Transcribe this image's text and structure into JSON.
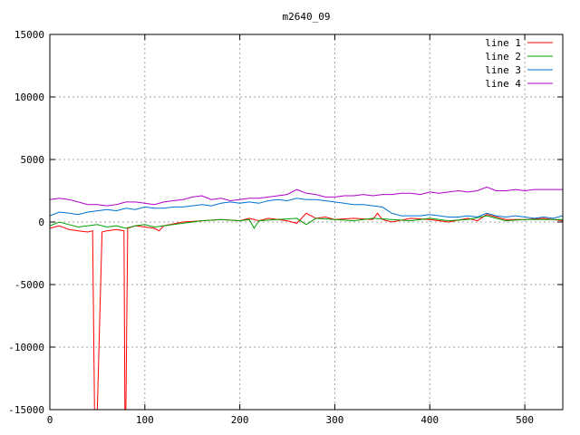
{
  "chart_data": {
    "type": "line",
    "title": "m2640_09",
    "xlabel": "",
    "ylabel": "",
    "xlim": [
      0,
      540
    ],
    "ylim": [
      -15000,
      15000
    ],
    "x_ticks": [
      0,
      100,
      200,
      300,
      400,
      500
    ],
    "y_ticks": [
      -15000,
      -10000,
      -5000,
      0,
      5000,
      10000,
      15000
    ],
    "grid": true,
    "legend_position": "top-right",
    "series": [
      {
        "name": "line 1",
        "color": "#ff0000",
        "points": [
          [
            0,
            -500
          ],
          [
            10,
            -300
          ],
          [
            20,
            -600
          ],
          [
            30,
            -700
          ],
          [
            40,
            -800
          ],
          [
            45,
            -700
          ],
          [
            47,
            -15000
          ],
          [
            50,
            -15000
          ],
          [
            55,
            -800
          ],
          [
            60,
            -700
          ],
          [
            70,
            -600
          ],
          [
            78,
            -700
          ],
          [
            79,
            -15000
          ],
          [
            80,
            -15000
          ],
          [
            82,
            -500
          ],
          [
            90,
            -300
          ],
          [
            100,
            -400
          ],
          [
            110,
            -500
          ],
          [
            115,
            -700
          ],
          [
            120,
            -300
          ],
          [
            140,
            0
          ],
          [
            160,
            100
          ],
          [
            180,
            200
          ],
          [
            200,
            100
          ],
          [
            210,
            300
          ],
          [
            220,
            100
          ],
          [
            230,
            300
          ],
          [
            240,
            200
          ],
          [
            250,
            100
          ],
          [
            260,
            -100
          ],
          [
            270,
            700
          ],
          [
            280,
            300
          ],
          [
            290,
            400
          ],
          [
            300,
            200
          ],
          [
            320,
            300
          ],
          [
            340,
            200
          ],
          [
            345,
            700
          ],
          [
            350,
            200
          ],
          [
            360,
            0
          ],
          [
            380,
            300
          ],
          [
            400,
            200
          ],
          [
            420,
            0
          ],
          [
            440,
            300
          ],
          [
            450,
            100
          ],
          [
            460,
            600
          ],
          [
            480,
            200
          ],
          [
            500,
            200
          ],
          [
            520,
            300
          ],
          [
            540,
            100
          ]
        ]
      },
      {
        "name": "line 2",
        "color": "#00a000",
        "points": [
          [
            0,
            -300
          ],
          [
            10,
            0
          ],
          [
            20,
            -200
          ],
          [
            30,
            -400
          ],
          [
            40,
            -300
          ],
          [
            50,
            -200
          ],
          [
            60,
            -400
          ],
          [
            70,
            -300
          ],
          [
            80,
            -500
          ],
          [
            90,
            -300
          ],
          [
            100,
            -200
          ],
          [
            110,
            -400
          ],
          [
            120,
            -300
          ],
          [
            140,
            -100
          ],
          [
            160,
            100
          ],
          [
            180,
            200
          ],
          [
            200,
            100
          ],
          [
            210,
            200
          ],
          [
            215,
            -500
          ],
          [
            220,
            100
          ],
          [
            240,
            200
          ],
          [
            260,
            300
          ],
          [
            270,
            -200
          ],
          [
            280,
            300
          ],
          [
            300,
            200
          ],
          [
            320,
            100
          ],
          [
            340,
            300
          ],
          [
            360,
            200
          ],
          [
            380,
            100
          ],
          [
            400,
            300
          ],
          [
            420,
            100
          ],
          [
            440,
            200
          ],
          [
            460,
            500
          ],
          [
            480,
            100
          ],
          [
            500,
            200
          ],
          [
            520,
            200
          ],
          [
            540,
            200
          ]
        ]
      },
      {
        "name": "line 3",
        "color": "#0070d0",
        "points": [
          [
            0,
            500
          ],
          [
            10,
            800
          ],
          [
            20,
            700
          ],
          [
            30,
            600
          ],
          [
            40,
            800
          ],
          [
            50,
            900
          ],
          [
            60,
            1000
          ],
          [
            70,
            900
          ],
          [
            80,
            1100
          ],
          [
            90,
            1000
          ],
          [
            100,
            1200
          ],
          [
            110,
            1100
          ],
          [
            120,
            1100
          ],
          [
            130,
            1200
          ],
          [
            140,
            1200
          ],
          [
            150,
            1300
          ],
          [
            160,
            1400
          ],
          [
            170,
            1300
          ],
          [
            180,
            1500
          ],
          [
            190,
            1600
          ],
          [
            200,
            1500
          ],
          [
            210,
            1600
          ],
          [
            220,
            1500
          ],
          [
            230,
            1700
          ],
          [
            240,
            1800
          ],
          [
            250,
            1700
          ],
          [
            260,
            1900
          ],
          [
            270,
            1800
          ],
          [
            280,
            1800
          ],
          [
            290,
            1700
          ],
          [
            300,
            1600
          ],
          [
            310,
            1500
          ],
          [
            320,
            1400
          ],
          [
            330,
            1400
          ],
          [
            340,
            1300
          ],
          [
            350,
            1200
          ],
          [
            360,
            700
          ],
          [
            370,
            500
          ],
          [
            380,
            500
          ],
          [
            390,
            500
          ],
          [
            400,
            600
          ],
          [
            410,
            500
          ],
          [
            420,
            400
          ],
          [
            430,
            400
          ],
          [
            440,
            500
          ],
          [
            450,
            400
          ],
          [
            460,
            700
          ],
          [
            470,
            500
          ],
          [
            480,
            400
          ],
          [
            490,
            500
          ],
          [
            500,
            400
          ],
          [
            510,
            300
          ],
          [
            520,
            400
          ],
          [
            530,
            300
          ],
          [
            540,
            500
          ]
        ]
      },
      {
        "name": "line 4",
        "color": "#b000c8",
        "points": [
          [
            0,
            1800
          ],
          [
            10,
            1900
          ],
          [
            20,
            1800
          ],
          [
            30,
            1600
          ],
          [
            40,
            1400
          ],
          [
            50,
            1400
          ],
          [
            60,
            1300
          ],
          [
            70,
            1400
          ],
          [
            80,
            1600
          ],
          [
            90,
            1600
          ],
          [
            100,
            1500
          ],
          [
            110,
            1400
          ],
          [
            120,
            1600
          ],
          [
            130,
            1700
          ],
          [
            140,
            1800
          ],
          [
            150,
            2000
          ],
          [
            160,
            2100
          ],
          [
            170,
            1800
          ],
          [
            180,
            1900
          ],
          [
            190,
            1700
          ],
          [
            200,
            1800
          ],
          [
            210,
            1900
          ],
          [
            220,
            1900
          ],
          [
            230,
            2000
          ],
          [
            240,
            2100
          ],
          [
            250,
            2200
          ],
          [
            260,
            2600
          ],
          [
            270,
            2300
          ],
          [
            280,
            2200
          ],
          [
            290,
            2000
          ],
          [
            300,
            2000
          ],
          [
            310,
            2100
          ],
          [
            320,
            2100
          ],
          [
            330,
            2200
          ],
          [
            340,
            2100
          ],
          [
            350,
            2200
          ],
          [
            360,
            2200
          ],
          [
            370,
            2300
          ],
          [
            380,
            2300
          ],
          [
            390,
            2200
          ],
          [
            400,
            2400
          ],
          [
            410,
            2300
          ],
          [
            420,
            2400
          ],
          [
            430,
            2500
          ],
          [
            440,
            2400
          ],
          [
            450,
            2500
          ],
          [
            460,
            2800
          ],
          [
            470,
            2500
          ],
          [
            480,
            2500
          ],
          [
            490,
            2600
          ],
          [
            500,
            2500
          ],
          [
            510,
            2600
          ],
          [
            520,
            2600
          ],
          [
            530,
            2600
          ],
          [
            540,
            2600
          ]
        ]
      }
    ]
  }
}
